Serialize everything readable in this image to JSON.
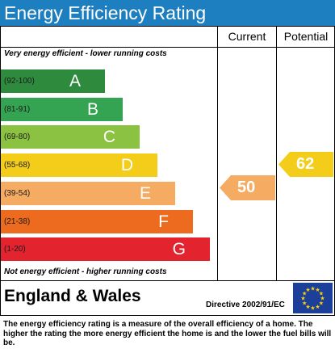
{
  "title": "Energy Efficiency Rating",
  "columns": {
    "current": "Current",
    "potential": "Potential"
  },
  "top_note": "Very energy efficient - lower running costs",
  "bottom_note": "Not energy efficient - higher running costs",
  "bands": [
    {
      "range": "(92-100)",
      "letter": "A",
      "color": "#2e8b3e"
    },
    {
      "range": "(81-91)",
      "letter": "B",
      "color": "#34a452"
    },
    {
      "range": "(69-80)",
      "letter": "C",
      "color": "#8cc242"
    },
    {
      "range": "(55-68)",
      "letter": "D",
      "color": "#f3cd1a"
    },
    {
      "range": "(39-54)",
      "letter": "E",
      "color": "#f6ab62"
    },
    {
      "range": "(21-38)",
      "letter": "F",
      "color": "#ed6b1e"
    },
    {
      "range": "(1-20)",
      "letter": "G",
      "color": "#e3232d"
    }
  ],
  "ratings": {
    "current": {
      "value": "50",
      "band": "E",
      "color": "#f6ab62"
    },
    "potential": {
      "value": "62",
      "band": "D",
      "color": "#f3cd1a"
    }
  },
  "region": "England & Wales",
  "directive": "Directive 2002/91/EC",
  "caption": "The energy efficiency rating is a measure of the overall efficiency of a home. The higher the rating the more energy efficient the home is and the lower the fuel bills will be.",
  "flag_icon": "eu-flag-icon"
}
